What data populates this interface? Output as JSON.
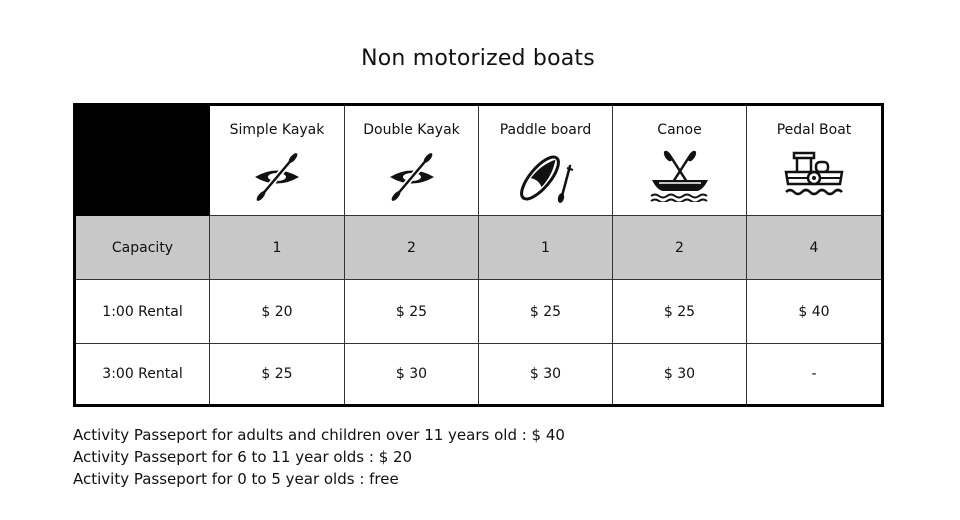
{
  "title": "Non motorized boats",
  "columns": [
    {
      "label": "Simple Kayak",
      "icon": "kayak-icon"
    },
    {
      "label": "Double Kayak",
      "icon": "kayak-icon"
    },
    {
      "label": "Paddle board",
      "icon": "paddle-board-icon"
    },
    {
      "label": "Canoe",
      "icon": "canoe-icon"
    },
    {
      "label": "Pedal Boat",
      "icon": "pedal-boat-icon"
    }
  ],
  "rows": [
    {
      "label": "Capacity",
      "values": [
        "1",
        "2",
        "1",
        "2",
        "4"
      ]
    },
    {
      "label": "1:00 Rental",
      "values": [
        "$ 20",
        "$ 25",
        "$ 25",
        "$ 25",
        "$ 40"
      ]
    },
    {
      "label": "3:00 Rental",
      "values": [
        "$ 25",
        "$ 30",
        "$ 30",
        "$ 30",
        "-"
      ]
    }
  ],
  "notes": [
    "Activity Passeport for adults and children over 11 years old : $ 40",
    "Activity Passeport for 6 to 11 year olds : $ 20",
    "Activity Passeport for 0 to 5 year olds : free"
  ],
  "colors": {
    "header_corner": "#000000",
    "capacity_row": "#c8c8c8",
    "border": "#000000"
  }
}
